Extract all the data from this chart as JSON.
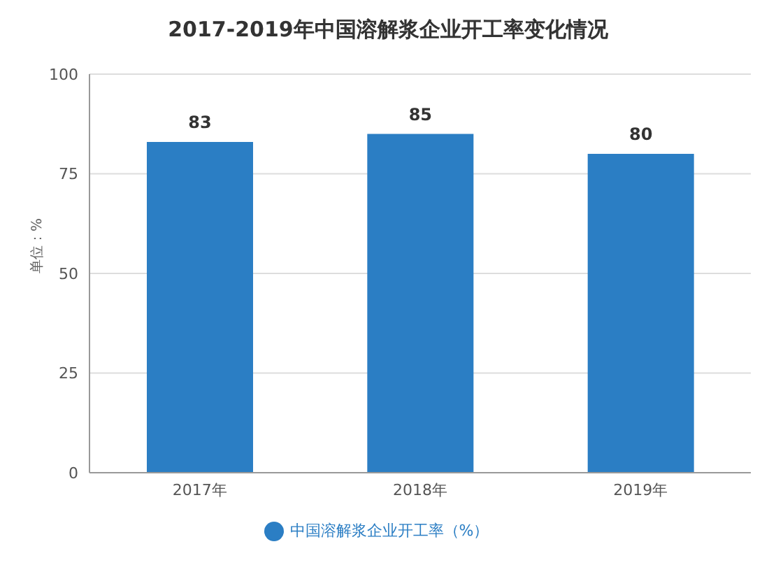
{
  "chart_data": {
    "type": "bar",
    "title": "2017-2019年中国溶解浆企业开工率变化情况",
    "ylabel": "单位：%",
    "categories": [
      "2017年",
      "2018年",
      "2019年"
    ],
    "series": [
      {
        "name": "中国溶解浆企业开工率（%）",
        "color": "#2b7ec4",
        "values": [
          83,
          85,
          80
        ]
      }
    ],
    "ylim": [
      0,
      100
    ],
    "yticks": [
      0,
      25,
      50,
      75,
      100
    ],
    "grid": "y",
    "legend": "bottom",
    "data_labels": true
  }
}
